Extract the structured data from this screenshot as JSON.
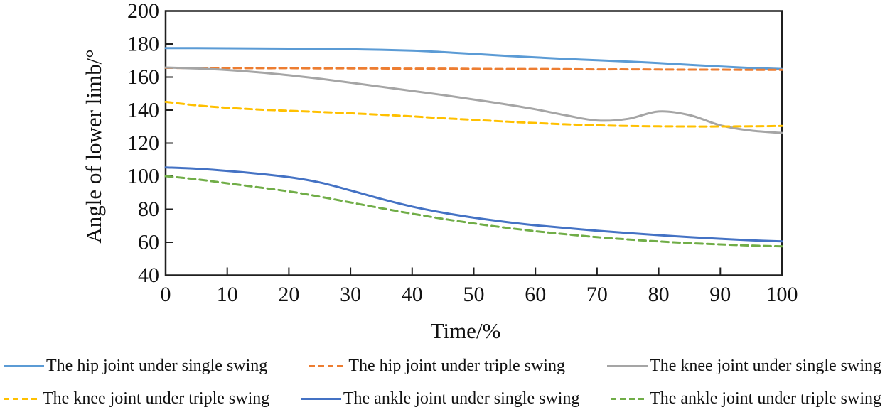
{
  "chart_data": {
    "type": "line",
    "title": "",
    "xlabel": "Time/%",
    "ylabel": "Angle of lower limb/°",
    "xlim": [
      0,
      100
    ],
    "ylim": [
      40,
      200
    ],
    "xticks": [
      0,
      10,
      20,
      30,
      40,
      50,
      60,
      70,
      80,
      90,
      100
    ],
    "yticks": [
      40,
      60,
      80,
      100,
      120,
      140,
      160,
      180,
      200
    ],
    "grid": false,
    "legend_position": "bottom",
    "x": [
      0,
      5,
      10,
      15,
      20,
      25,
      30,
      35,
      40,
      45,
      50,
      55,
      60,
      65,
      70,
      75,
      80,
      85,
      90,
      95,
      100
    ],
    "series": [
      {
        "name": "The hip joint under single swing",
        "color": "#5B9BD5",
        "style": "solid",
        "values": [
          177.5,
          177.5,
          177.4,
          177.3,
          177.2,
          177.0,
          176.8,
          176.5,
          176.0,
          175.1,
          174.0,
          172.9,
          171.9,
          171.0,
          170.2,
          169.4,
          168.5,
          167.4,
          166.4,
          165.5,
          164.9
        ]
      },
      {
        "name": "The hip joint under triple swing",
        "color": "#ED7D31",
        "style": "dashed",
        "values": [
          165.6,
          165.5,
          165.5,
          165.4,
          165.4,
          165.3,
          165.3,
          165.2,
          165.1,
          165.1,
          165.0,
          164.9,
          164.9,
          164.8,
          164.7,
          164.7,
          164.6,
          164.5,
          164.5,
          164.4,
          164.4
        ]
      },
      {
        "name": "The knee joint under single swing",
        "color": "#A5A5A5",
        "style": "solid",
        "values": [
          165.8,
          165.2,
          164.3,
          162.9,
          161.1,
          159.0,
          156.6,
          154.1,
          151.6,
          149.1,
          146.4,
          143.6,
          140.5,
          136.8,
          133.7,
          134.7,
          139.2,
          137.0,
          130.8,
          127.6,
          126.2
        ]
      },
      {
        "name": "The knee joint under triple swing",
        "color": "#FFC000",
        "style": "dashed",
        "values": [
          145.0,
          142.9,
          141.4,
          140.4,
          139.6,
          138.9,
          138.1,
          137.2,
          136.2,
          135.1,
          134.1,
          133.1,
          132.2,
          131.4,
          130.8,
          130.4,
          130.2,
          130.1,
          130.1,
          130.2,
          130.4
        ]
      },
      {
        "name": "The ankle joint under single swing",
        "color": "#4472C4",
        "style": "solid",
        "values": [
          105.3,
          104.5,
          103.2,
          101.5,
          99.4,
          96.2,
          91.4,
          86.2,
          81.6,
          77.9,
          74.9,
          72.4,
          70.3,
          68.6,
          67.0,
          65.6,
          64.3,
          63.1,
          62.1,
          61.2,
          60.5
        ]
      },
      {
        "name": "The ankle joint under triple swing",
        "color": "#70AD47",
        "style": "dashed",
        "values": [
          100.0,
          98.1,
          95.7,
          93.3,
          90.8,
          87.6,
          84.1,
          80.6,
          77.3,
          74.2,
          71.4,
          68.9,
          66.7,
          64.8,
          63.1,
          61.7,
          60.5,
          59.5,
          58.7,
          58.0,
          57.5
        ]
      }
    ],
    "legend_rows": [
      [
        0,
        1,
        2
      ],
      [
        3,
        4,
        5
      ]
    ]
  }
}
